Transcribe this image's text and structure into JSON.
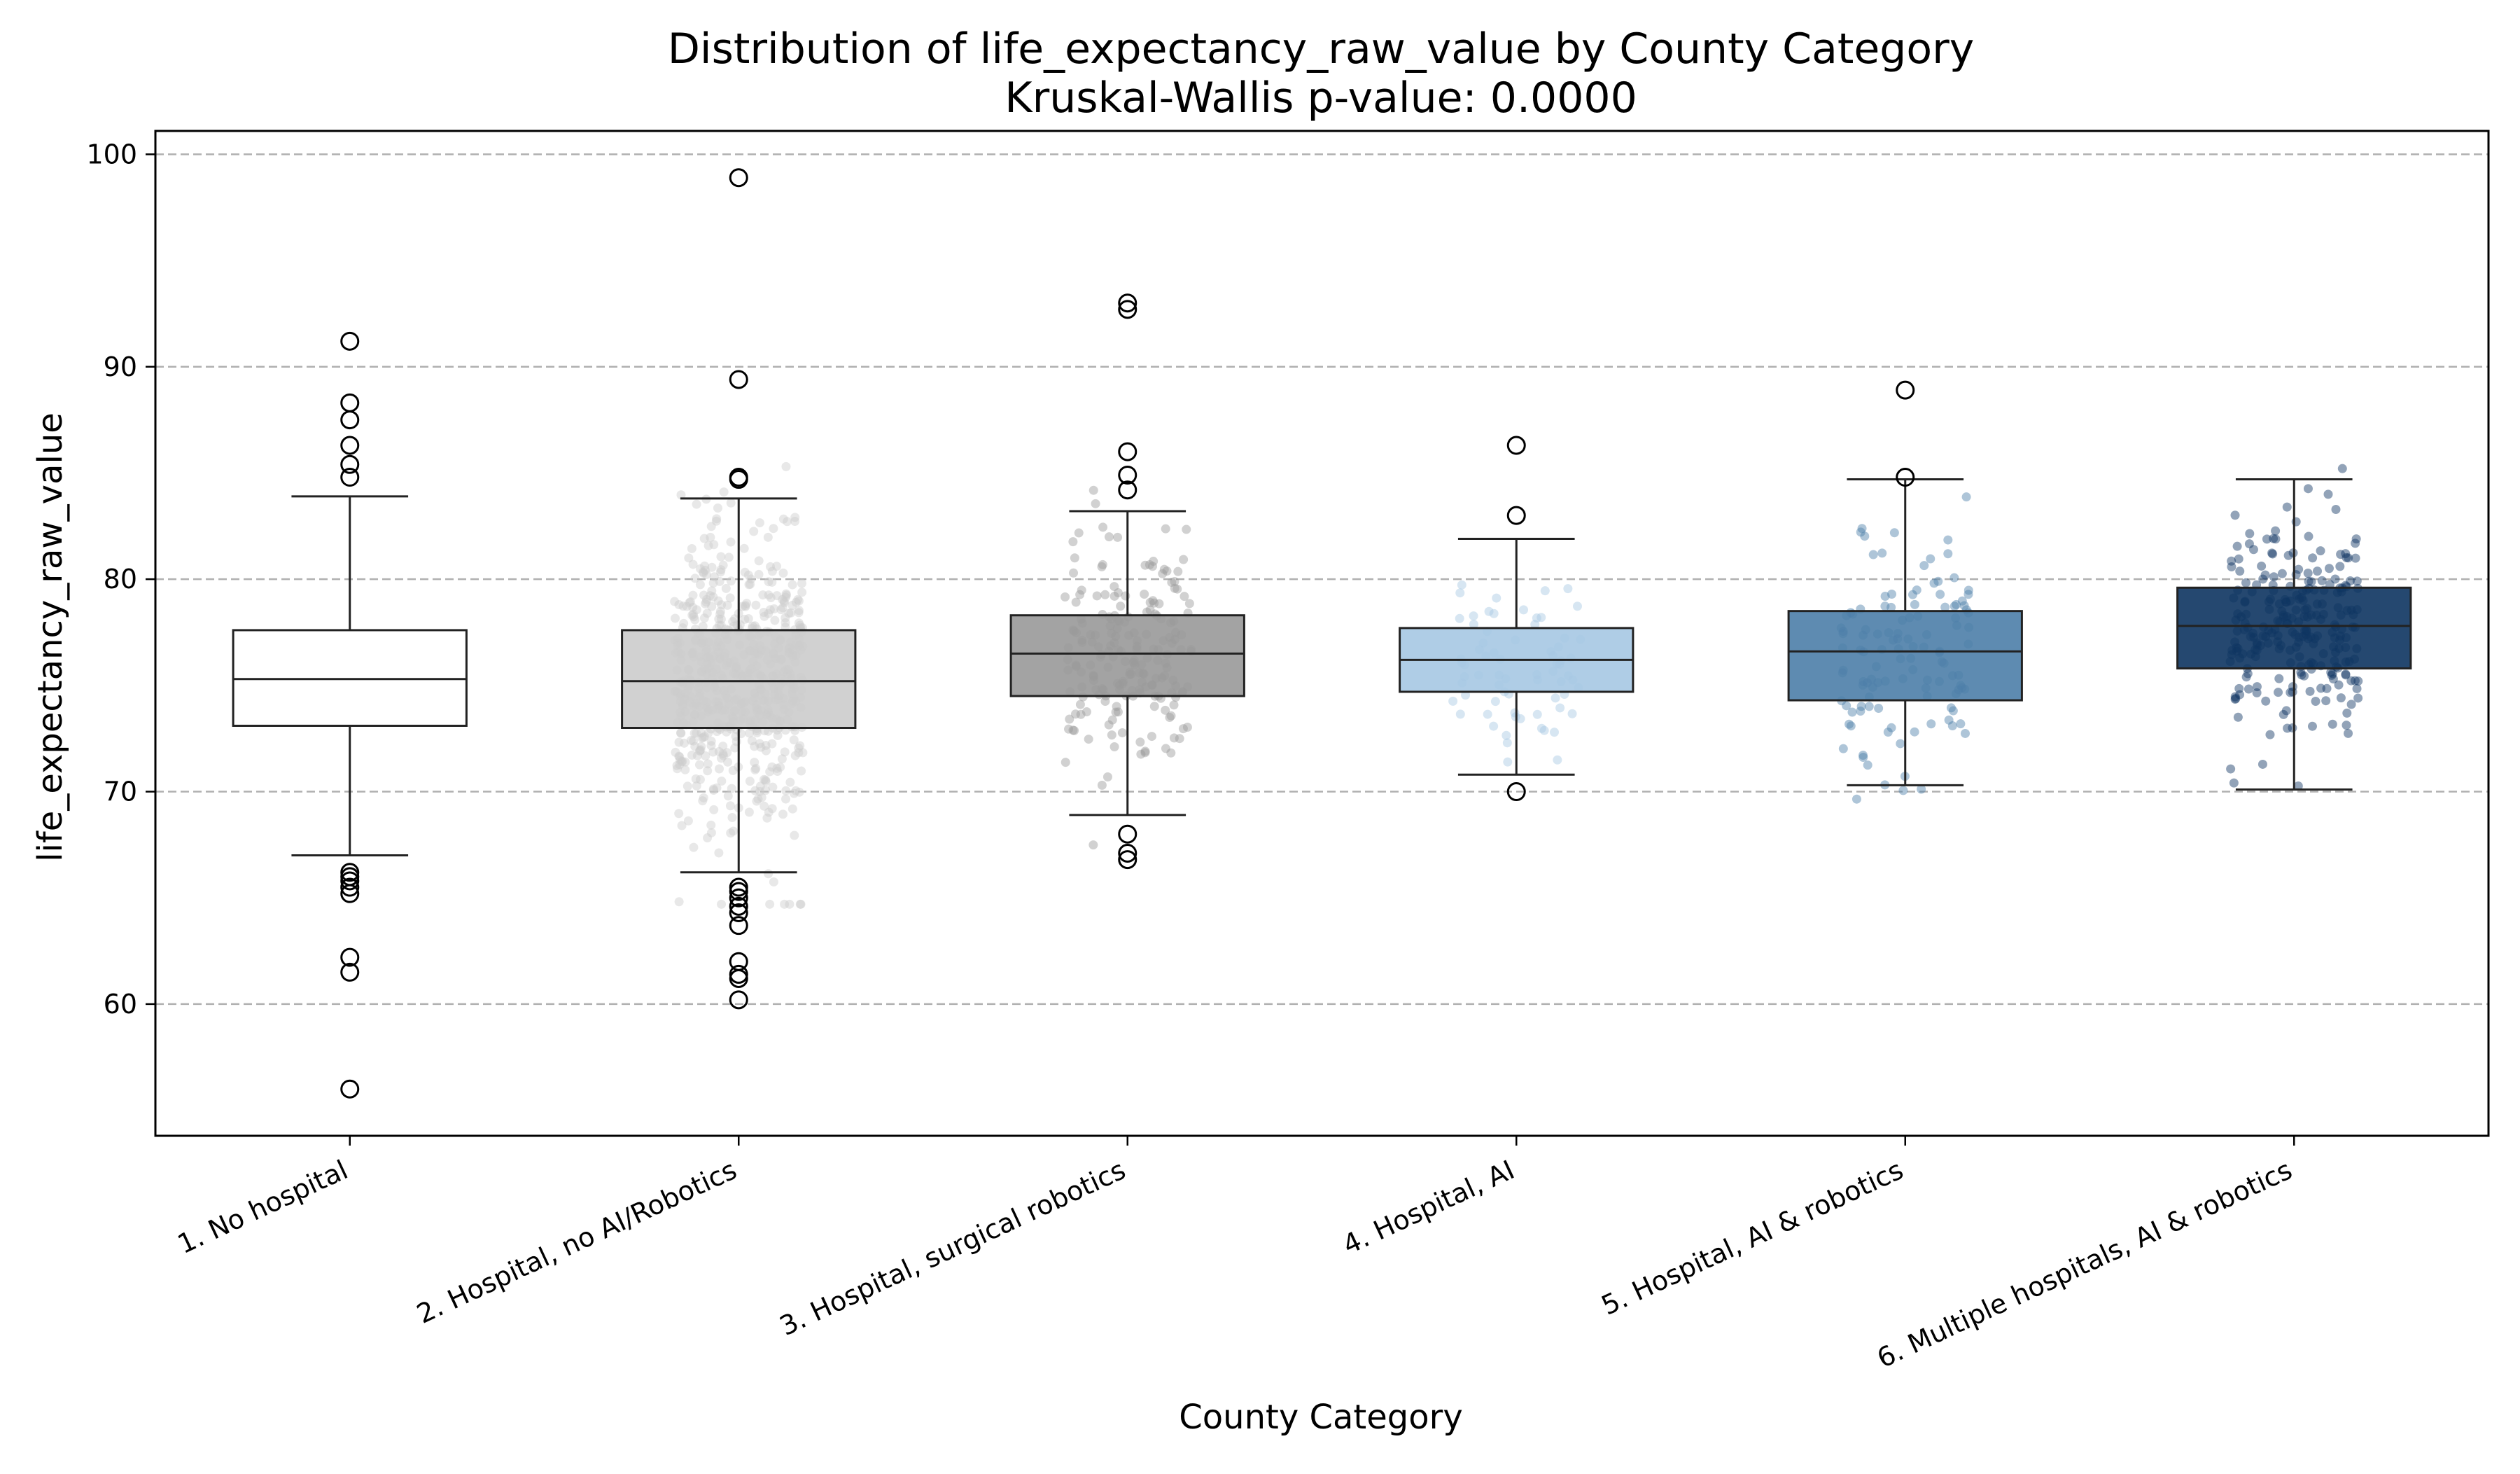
{
  "chart_data": {
    "type": "box",
    "title": "Distribution of life_expectancy_raw_value by County Category",
    "subtitle": "Kruskal-Wallis p-value: 0.0000",
    "xlabel": "County Category",
    "ylabel": "life_expectancy_raw_value",
    "ylim": [
      53.8,
      101.1
    ],
    "yticks": [
      60,
      70,
      80,
      90,
      100
    ],
    "grid": "y-dashed",
    "categories": [
      "1. No hospital",
      "2. Hospital, no AI/Robotics",
      "3. Hospital, surgical robotics",
      "4. Hospital, AI",
      "5. Hospital, AI & robotics",
      "6. Multiple hospitals, AI & robotics"
    ],
    "colors": [
      "#ffffff",
      "#cccccc",
      "#999999",
      "#a6c8e3",
      "#4c7ea8",
      "#0d3461"
    ],
    "boxes": [
      {
        "whisker_low": 67.0,
        "q1": 73.1,
        "median": 75.3,
        "q3": 77.6,
        "whisker_high": 83.9,
        "outliers": [
          91.2,
          88.3,
          87.5,
          86.3,
          85.4,
          84.8,
          66.2,
          66.0,
          65.8,
          65.5,
          65.2,
          62.2,
          61.5,
          56.0
        ],
        "points": 0
      },
      {
        "whisker_low": 66.2,
        "q1": 73.0,
        "median": 75.2,
        "q3": 77.6,
        "whisker_high": 83.8,
        "outliers": [
          98.9,
          89.4,
          84.8,
          84.7,
          65.5,
          65.3,
          65.0,
          64.6,
          64.3,
          63.7,
          62.0,
          61.4,
          61.2,
          60.2
        ],
        "points": 600
      },
      {
        "whisker_low": 68.9,
        "q1": 74.5,
        "median": 76.5,
        "q3": 78.3,
        "whisker_high": 83.2,
        "outliers": [
          93.0,
          92.7,
          86.0,
          84.9,
          84.2,
          68.0,
          67.1,
          66.8
        ],
        "points": 200
      },
      {
        "whisker_low": 70.8,
        "q1": 74.7,
        "median": 76.2,
        "q3": 77.7,
        "whisker_high": 81.9,
        "outliers": [
          86.3,
          83.0,
          70.0
        ],
        "points": 70
      },
      {
        "whisker_low": 70.3,
        "q1": 74.3,
        "median": 76.6,
        "q3": 78.5,
        "whisker_high": 84.7,
        "outliers": [
          88.9,
          84.8
        ],
        "points": 120
      },
      {
        "whisker_low": 70.1,
        "q1": 75.8,
        "median": 77.8,
        "q3": 79.6,
        "whisker_high": 84.7,
        "outliers": [],
        "points": 250
      }
    ]
  }
}
